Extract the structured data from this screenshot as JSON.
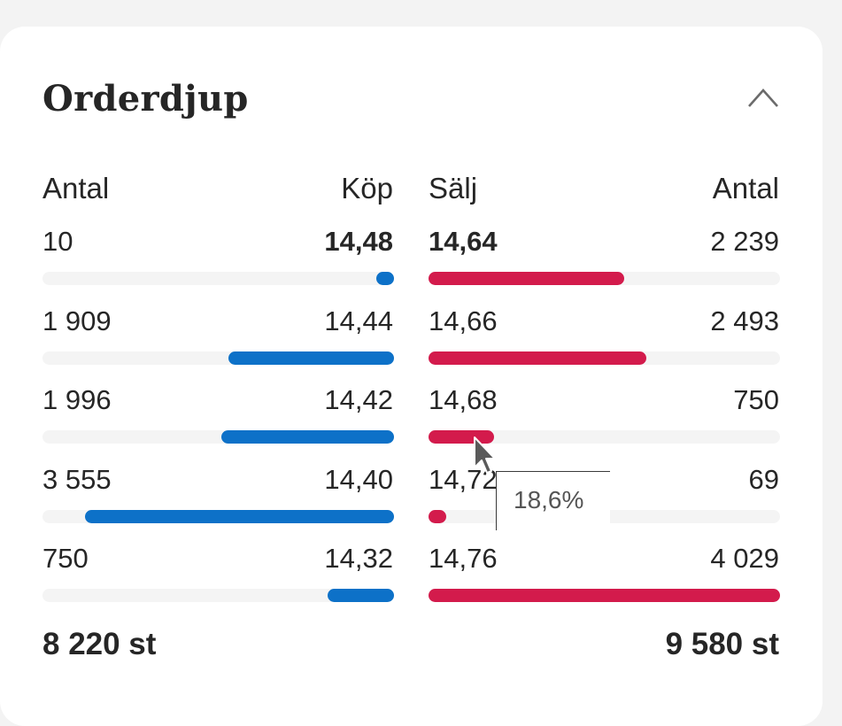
{
  "widget": {
    "title": "Orderdjup",
    "collapse_icon": "chevron-up-icon"
  },
  "headers": {
    "buy_qty": "Antal",
    "buy_price": "Köp",
    "sell_price": "Sälj",
    "sell_qty": "Antal"
  },
  "rows": [
    {
      "buy_qty": "10",
      "buy_price": "14,48",
      "buy_fill": 0.05,
      "sell_price": "14,64",
      "sell_qty": "2 239",
      "sell_fill": 0.556
    },
    {
      "buy_qty": "1 909",
      "buy_price": "14,44",
      "buy_fill": 0.47,
      "sell_price": "14,66",
      "sell_qty": "2 493",
      "sell_fill": 0.619
    },
    {
      "buy_qty": "1 996",
      "buy_price": "14,42",
      "buy_fill": 0.49,
      "sell_price": "14,68",
      "sell_qty": "750",
      "sell_fill": 0.186
    },
    {
      "buy_qty": "3 555",
      "buy_price": "14,40",
      "buy_fill": 0.88,
      "sell_price": "14,72",
      "sell_qty": "69",
      "sell_fill": 0.05
    },
    {
      "buy_qty": "750",
      "buy_price": "14,32",
      "buy_fill": 0.19,
      "sell_price": "14,76",
      "sell_qty": "4 029",
      "sell_fill": 1.0
    }
  ],
  "totals": {
    "buy": "8 220 st",
    "sell": "9 580 st"
  },
  "tooltip": {
    "text": "18,6%"
  },
  "colors": {
    "buy": "#0d71c8",
    "sell": "#d31b4c",
    "track": "#f4f4f4"
  }
}
